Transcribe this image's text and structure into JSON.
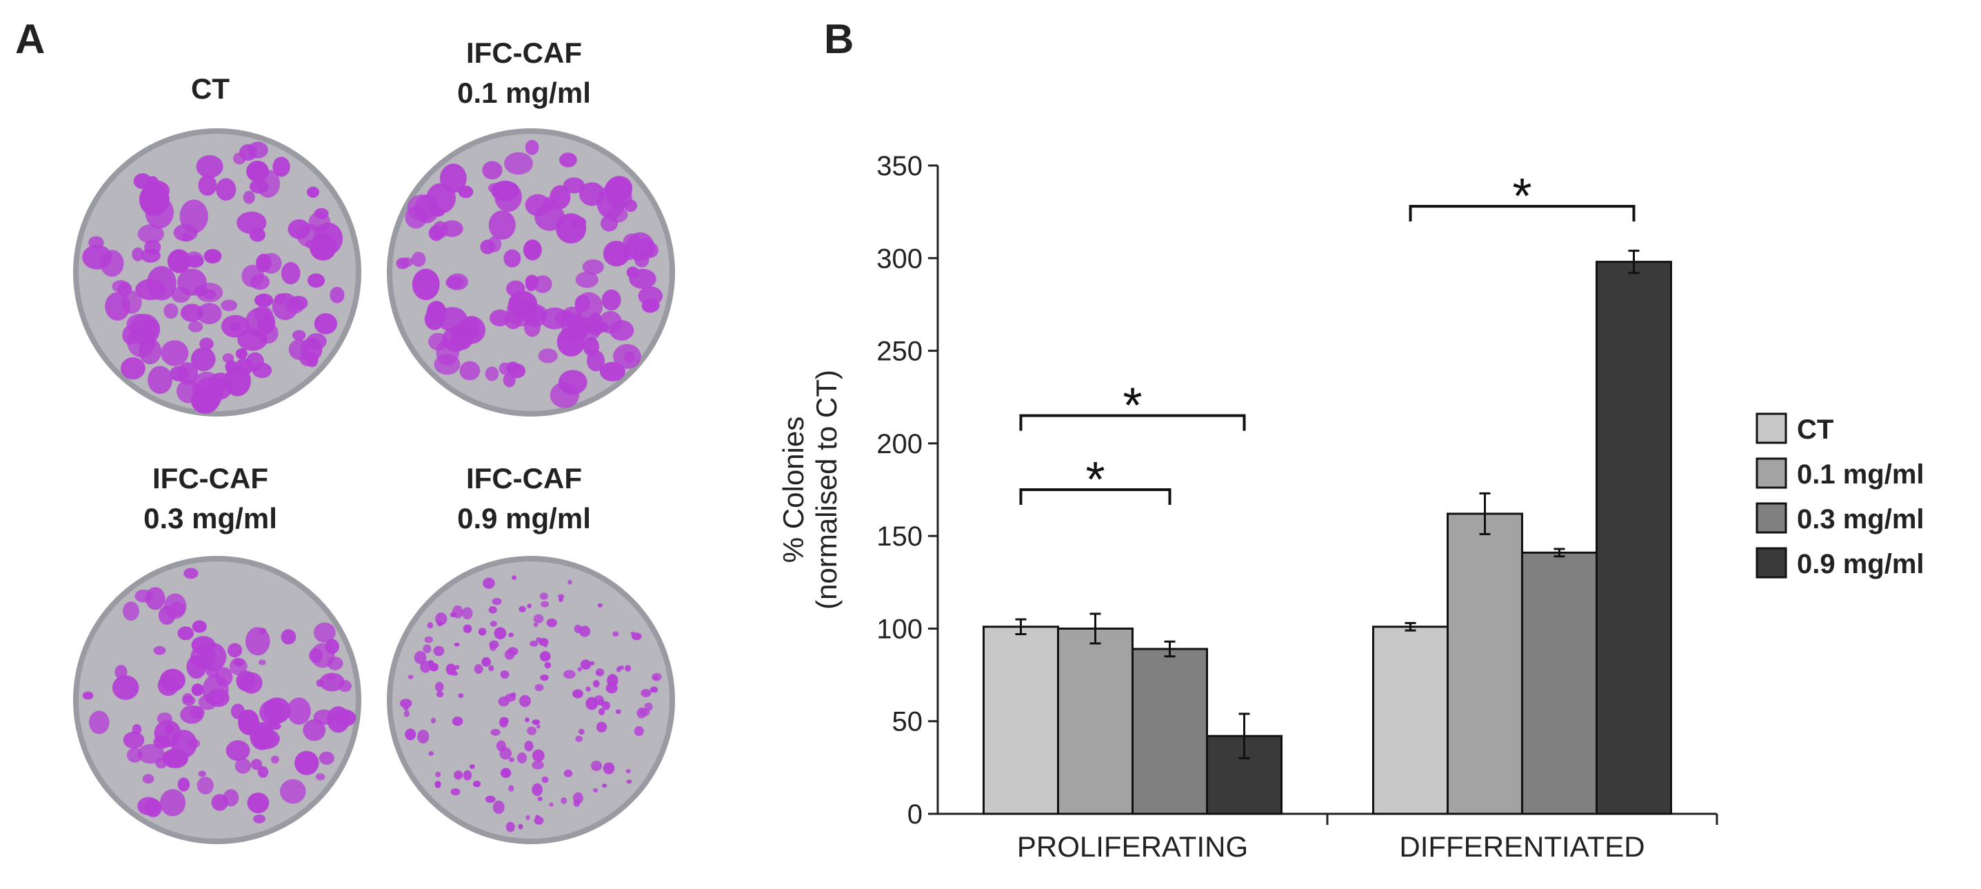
{
  "panel_a": {
    "letter": "A",
    "dishes": [
      {
        "line1": "CT",
        "line2": "",
        "density": "high",
        "id": "ct"
      },
      {
        "line1": "IFC-CAF",
        "line2": "0.1 mg/ml",
        "density": "high",
        "id": "0.1"
      },
      {
        "line1": "IFC-CAF",
        "line2": "0.3 mg/ml",
        "density": "medium",
        "id": "0.3"
      },
      {
        "line1": "IFC-CAF",
        "line2": "0.9 mg/ml",
        "density": "low",
        "id": "0.9"
      }
    ],
    "colors": {
      "stain": "#b53ed6",
      "plate": "#b7b7bd",
      "rim": "#9a9aa2"
    }
  },
  "panel_b": {
    "letter": "B"
  },
  "chart_data": {
    "type": "bar",
    "categories": [
      "PROLIFERATING",
      "DIFFERENTIATED"
    ],
    "series": [
      {
        "name": "CT",
        "values": [
          101,
          101
        ],
        "errors": [
          4,
          2
        ],
        "color": "#c8c8c8"
      },
      {
        "name": "0.1 mg/ml",
        "values": [
          100,
          162
        ],
        "errors": [
          8,
          11
        ],
        "color": "#a3a3a3"
      },
      {
        "name": "0.3 mg/ml",
        "values": [
          89,
          141
        ],
        "errors": [
          4,
          2
        ],
        "color": "#808080"
      },
      {
        "name": "0.9 mg/ml",
        "values": [
          42,
          298
        ],
        "errors": [
          12,
          6
        ],
        "color": "#3a3a3a"
      }
    ],
    "ylabel_line1": "% Colonies",
    "ylabel_line2": "(normalised to CT)",
    "ylim": [
      0,
      350
    ],
    "yticks": [
      0,
      50,
      100,
      150,
      200,
      250,
      300,
      350
    ],
    "legend_position": "right",
    "significance": [
      {
        "group": 0,
        "from_series": 0,
        "to_series": 3,
        "level": 215,
        "label": "*"
      },
      {
        "group": 0,
        "from_series": 0,
        "to_series": 2,
        "level": 175,
        "label": "*"
      },
      {
        "group": 1,
        "from_series": 0,
        "to_series": 3,
        "level": 328,
        "label": "*"
      }
    ]
  }
}
